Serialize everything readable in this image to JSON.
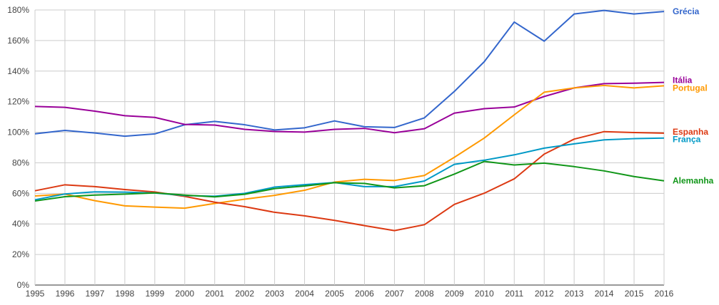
{
  "chart_data": {
    "type": "line",
    "title": "",
    "xlabel": "",
    "ylabel": "",
    "x": [
      1995,
      1996,
      1997,
      1998,
      1999,
      2000,
      2001,
      2002,
      2003,
      2004,
      2005,
      2006,
      2007,
      2008,
      2009,
      2010,
      2011,
      2012,
      2013,
      2014,
      2015,
      2016
    ],
    "x_tick_labels": [
      "1995",
      "1996",
      "1997",
      "1998",
      "1999",
      "2000",
      "2001",
      "2002",
      "2003",
      "2004",
      "2005",
      "2006",
      "2007",
      "2008",
      "2009",
      "2010",
      "2011",
      "2012",
      "2013",
      "2014",
      "2015",
      "2016"
    ],
    "ylim": [
      0,
      180
    ],
    "y_ticks": [
      0,
      20,
      40,
      60,
      80,
      100,
      120,
      140,
      160,
      180
    ],
    "y_tick_labels": [
      "0%",
      "20%",
      "40%",
      "60%",
      "80%",
      "100%",
      "120%",
      "140%",
      "160%",
      "180%"
    ],
    "grid": true,
    "legend": "labels at right end of each line",
    "series": [
      {
        "name": "Grécia",
        "color": "#3366cc",
        "values": [
          99,
          101.2,
          99.5,
          97.4,
          98.9,
          104.9,
          107.1,
          104.9,
          101.5,
          102.9,
          107.4,
          103.6,
          103.1,
          109.4,
          126.7,
          146.2,
          172.1,
          159.6,
          177.4,
          179.7,
          177.4,
          179
        ]
      },
      {
        "name": "Itália",
        "color": "#990099",
        "values": [
          116.9,
          116.3,
          113.8,
          110.8,
          109.7,
          105.1,
          104.7,
          101.9,
          100.5,
          100.1,
          101.9,
          102.5,
          99.7,
          102.3,
          112.5,
          115.4,
          116.5,
          123.4,
          129,
          131.8,
          132.1,
          132.6
        ]
      },
      {
        "name": "Portugal",
        "color": "#ff9900",
        "values": [
          58.3,
          59.5,
          55.2,
          51.8,
          51,
          50.3,
          53.4,
          56.2,
          58.7,
          62,
          67.4,
          69.2,
          68.4,
          71.7,
          83.6,
          96.2,
          111.4,
          126.2,
          129,
          130.6,
          129,
          130.4
        ]
      },
      {
        "name": "Espanha",
        "color": "#dc3912",
        "values": [
          61.7,
          65.6,
          64.4,
          62.5,
          60.9,
          58,
          54.2,
          51.3,
          47.6,
          45.3,
          42.3,
          38.9,
          35.6,
          39.5,
          52.8,
          60.1,
          69.5,
          85.7,
          95.5,
          100.4,
          99.8,
          99.4
        ]
      },
      {
        "name": "França",
        "color": "#0099c6",
        "values": [
          55.8,
          59.6,
          61,
          60.8,
          60.2,
          58.6,
          58.1,
          60,
          64.1,
          65.7,
          67.1,
          64.4,
          64.4,
          68.1,
          79,
          81.7,
          85.2,
          89.6,
          92.4,
          95,
          95.8,
          96.2
        ]
      },
      {
        "name": "Alemanha",
        "color": "#109618",
        "values": [
          55,
          57.8,
          58.9,
          59.5,
          60.3,
          58.9,
          57.7,
          59.4,
          63.1,
          64.8,
          67,
          66.5,
          63.6,
          65,
          72.6,
          80.9,
          78.6,
          79.8,
          77.5,
          74.7,
          71,
          68.2
        ]
      }
    ]
  }
}
